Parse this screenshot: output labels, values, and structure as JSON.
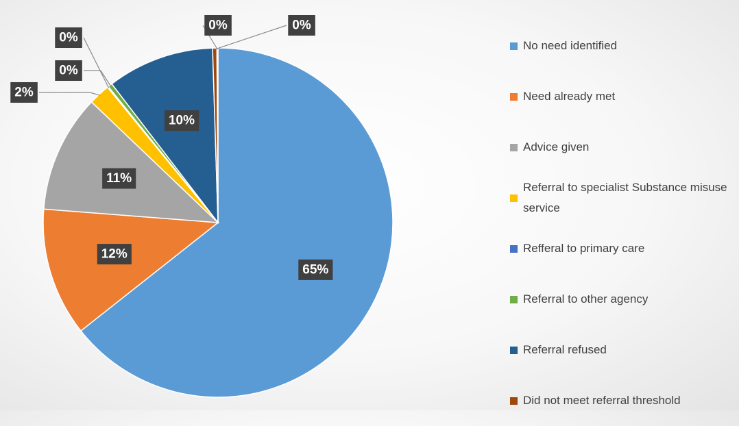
{
  "chart_data": {
    "type": "pie",
    "categories": [
      "No need identified",
      "Need already met",
      "Advice given",
      "Referral to specialist Substance misuse service",
      "Refferal to primary care",
      "Referral to other agency",
      "Referral refused",
      "Did not meet referral threshold",
      null
    ],
    "values": [
      65,
      12,
      11,
      2,
      0.1,
      0.4,
      10,
      0.4,
      0.1
    ],
    "value_labels": [
      "65%",
      "12%",
      "11%",
      "2%",
      "0%",
      "0%",
      "10%",
      "0%",
      "0%"
    ],
    "colors": [
      "#5b9bd5",
      "#ed7d31",
      "#a5a5a5",
      "#ffc000",
      "#4472c4",
      "#70ad47",
      "#255e91",
      "#9e480e",
      "#636363"
    ],
    "legend": "right"
  }
}
